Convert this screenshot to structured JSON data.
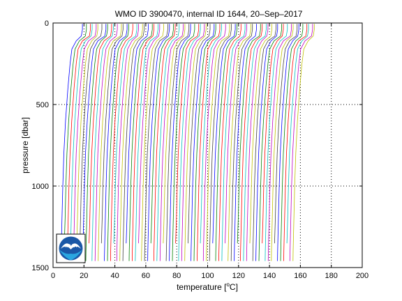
{
  "chart_data": {
    "type": "line",
    "title": "WMO ID 3900470, internal ID 1644, 20–Sep–2017",
    "xlabel_prefix": "temperature [",
    "xlabel_sup": "o",
    "xlabel_suffix": "C]",
    "ylabel": "pressure [dbar]",
    "xlim": [
      0,
      200
    ],
    "ylim": [
      0,
      1500
    ],
    "y_reversed": true,
    "xticks": [
      0,
      20,
      40,
      60,
      80,
      100,
      120,
      140,
      160,
      180,
      200
    ],
    "yticks": [
      0,
      500,
      1000,
      1500
    ],
    "grid": true,
    "grid_style": "dotted",
    "legend": "none",
    "logo_text": "NOAA",
    "series_colors": [
      "#0000ff",
      "#008000",
      "#ff0000",
      "#00bfbf",
      "#bf00bf",
      "#bfbf00",
      "#404040"
    ],
    "profile_offset_step": 2.0,
    "profile_count": 76,
    "base_profile": {
      "pressure": [
        5,
        40,
        80,
        110,
        160,
        250,
        400,
        600,
        800,
        1000,
        1200,
        1400,
        1460
      ],
      "temperature": [
        19.0,
        19.0,
        18.3,
        15.0,
        12.2,
        11.0,
        9.6,
        8.1,
        7.0,
        6.3,
        5.8,
        5.3,
        5.2
      ]
    }
  }
}
